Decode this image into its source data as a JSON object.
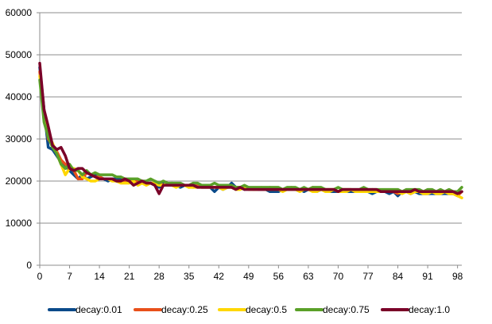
{
  "chart_data": {
    "type": "line",
    "title": "",
    "xlabel": "",
    "ylabel": "",
    "ylim": [
      0,
      60000
    ],
    "xlim": [
      0,
      99
    ],
    "yticks": [
      0,
      10000,
      20000,
      30000,
      40000,
      50000,
      60000
    ],
    "xticks": [
      0,
      7,
      14,
      21,
      28,
      35,
      42,
      49,
      56,
      63,
      70,
      77,
      84,
      91,
      98
    ],
    "grid": "horizontal",
    "legend_position": "bottom",
    "series": [
      {
        "name": "decay:0.01",
        "color": "#0a4a8a",
        "values": [
          47000,
          37000,
          28000,
          27500,
          26000,
          24500,
          23500,
          22500,
          21500,
          20500,
          21500,
          20500,
          21000,
          21500,
          21000,
          20500,
          20000,
          20500,
          20500,
          20500,
          20000,
          20000,
          20000,
          20000,
          19500,
          19500,
          19500,
          19000,
          18500,
          19500,
          19000,
          19500,
          19000,
          18500,
          19000,
          19000,
          18500,
          19000,
          18500,
          18500,
          18500,
          17500,
          18500,
          18000,
          18500,
          19500,
          18500,
          18500,
          18000,
          18500,
          18000,
          18000,
          18000,
          18000,
          17500,
          17500,
          17500,
          18000,
          18000,
          18000,
          18000,
          18000,
          17500,
          18000,
          18000,
          17500,
          18000,
          18000,
          17500,
          17500,
          17500,
          17500,
          17500,
          17500,
          17500,
          17500,
          17500,
          17500,
          17000,
          17500,
          17500,
          17500,
          17000,
          17500,
          16500,
          17500,
          17500,
          17000,
          17500,
          17000,
          17000,
          17000,
          17000,
          17000,
          17000,
          17000,
          17000,
          17000,
          17000,
          17500
        ]
      },
      {
        "name": "decay:0.25",
        "color": "#e8501a",
        "values": [
          46000,
          36000,
          30000,
          28500,
          27000,
          25000,
          24000,
          23000,
          22500,
          20500,
          20500,
          22000,
          21500,
          21000,
          21000,
          20500,
          20500,
          20500,
          20000,
          20000,
          20000,
          20500,
          20000,
          20000,
          19500,
          19500,
          19500,
          19500,
          19500,
          19000,
          19000,
          19000,
          19000,
          19000,
          19000,
          18500,
          19000,
          19000,
          18500,
          18500,
          18500,
          18500,
          18500,
          18500,
          18500,
          18500,
          18500,
          18500,
          18500,
          18500,
          18000,
          18000,
          18000,
          18000,
          18500,
          18000,
          18000,
          18000,
          18000,
          18500,
          18000,
          18000,
          18000,
          18000,
          18500,
          18000,
          18000,
          18000,
          18000,
          18000,
          17500,
          18000,
          18000,
          18000,
          17500,
          17500,
          17500,
          17500,
          18000,
          17500,
          17500,
          17500,
          17500,
          17500,
          17000,
          17500,
          17500,
          17000,
          17500,
          17500,
          17000,
          17000,
          17500,
          17000,
          17000,
          17500,
          17000,
          17000,
          16500,
          17500
        ]
      },
      {
        "name": "decay:0.5",
        "color": "#ffd700",
        "values": [
          45000,
          35000,
          31000,
          29000,
          26500,
          24000,
          21500,
          23000,
          23000,
          22500,
          21000,
          20500,
          20000,
          20000,
          20500,
          20500,
          20500,
          20000,
          20000,
          19500,
          19500,
          19500,
          20000,
          19000,
          19500,
          19000,
          19500,
          19500,
          19000,
          19000,
          19500,
          19000,
          18500,
          19000,
          19000,
          18500,
          18500,
          18500,
          18500,
          18500,
          18500,
          18500,
          18500,
          18000,
          18500,
          18500,
          18000,
          18000,
          18500,
          18000,
          18000,
          18000,
          18500,
          18000,
          18000,
          18000,
          18000,
          17500,
          18000,
          18000,
          18000,
          17500,
          18000,
          18000,
          17500,
          17500,
          18000,
          17500,
          17500,
          18000,
          17500,
          17500,
          17500,
          18000,
          17500,
          17500,
          17500,
          17500,
          17500,
          17500,
          17500,
          17500,
          17500,
          17500,
          17500,
          17000,
          17500,
          17000,
          17500,
          17500,
          17000,
          17000,
          17500,
          17000,
          17000,
          17500,
          17000,
          17000,
          16500,
          16000
        ]
      },
      {
        "name": "decay:0.75",
        "color": "#5aa028",
        "values": [
          44000,
          34000,
          30500,
          28000,
          26500,
          24000,
          23000,
          24000,
          22500,
          22500,
          21500,
          22500,
          21500,
          22000,
          21500,
          21500,
          21500,
          21500,
          21000,
          21000,
          20500,
          20500,
          20500,
          20500,
          20000,
          20000,
          20500,
          20000,
          19500,
          20000,
          19500,
          19500,
          19500,
          19500,
          19000,
          19000,
          19500,
          19500,
          19000,
          19000,
          19000,
          19500,
          19000,
          19000,
          19000,
          19000,
          18500,
          18500,
          19000,
          18500,
          18500,
          18500,
          18500,
          18500,
          18500,
          18500,
          18500,
          18000,
          18500,
          18500,
          18500,
          18000,
          18500,
          18000,
          18500,
          18500,
          18500,
          18000,
          18000,
          18000,
          18500,
          18000,
          18000,
          18000,
          18000,
          18000,
          18500,
          18000,
          18000,
          18000,
          18000,
          18000,
          18000,
          18000,
          18000,
          17500,
          18000,
          18000,
          18000,
          18000,
          17500,
          18000,
          18000,
          17500,
          18000,
          17500,
          18000,
          17500,
          17500,
          18500
        ]
      },
      {
        "name": "decay:1.0",
        "color": "#7a0028",
        "values": [
          48000,
          37000,
          33000,
          28500,
          27500,
          28000,
          26000,
          23000,
          22500,
          23000,
          23000,
          22000,
          21500,
          21000,
          20500,
          20500,
          20500,
          20500,
          20000,
          20000,
          20500,
          20000,
          19000,
          19500,
          20000,
          19500,
          19500,
          19000,
          17000,
          19000,
          19000,
          19000,
          19000,
          19000,
          19000,
          19000,
          19000,
          18500,
          18500,
          18500,
          18500,
          18500,
          18500,
          18500,
          18500,
          18500,
          18000,
          18500,
          18000,
          18000,
          18000,
          18000,
          18000,
          18000,
          18000,
          18000,
          18000,
          18000,
          18000,
          18000,
          18000,
          18000,
          18000,
          18000,
          18000,
          18000,
          18000,
          18000,
          18000,
          18000,
          17500,
          18000,
          18000,
          18000,
          18000,
          18000,
          18000,
          18000,
          18000,
          18000,
          17500,
          17500,
          17500,
          17500,
          17500,
          17500,
          17500,
          17500,
          18000,
          17500,
          17500,
          17500,
          17500,
          17500,
          17500,
          17500,
          17500,
          17500,
          17000,
          17500
        ]
      }
    ]
  }
}
